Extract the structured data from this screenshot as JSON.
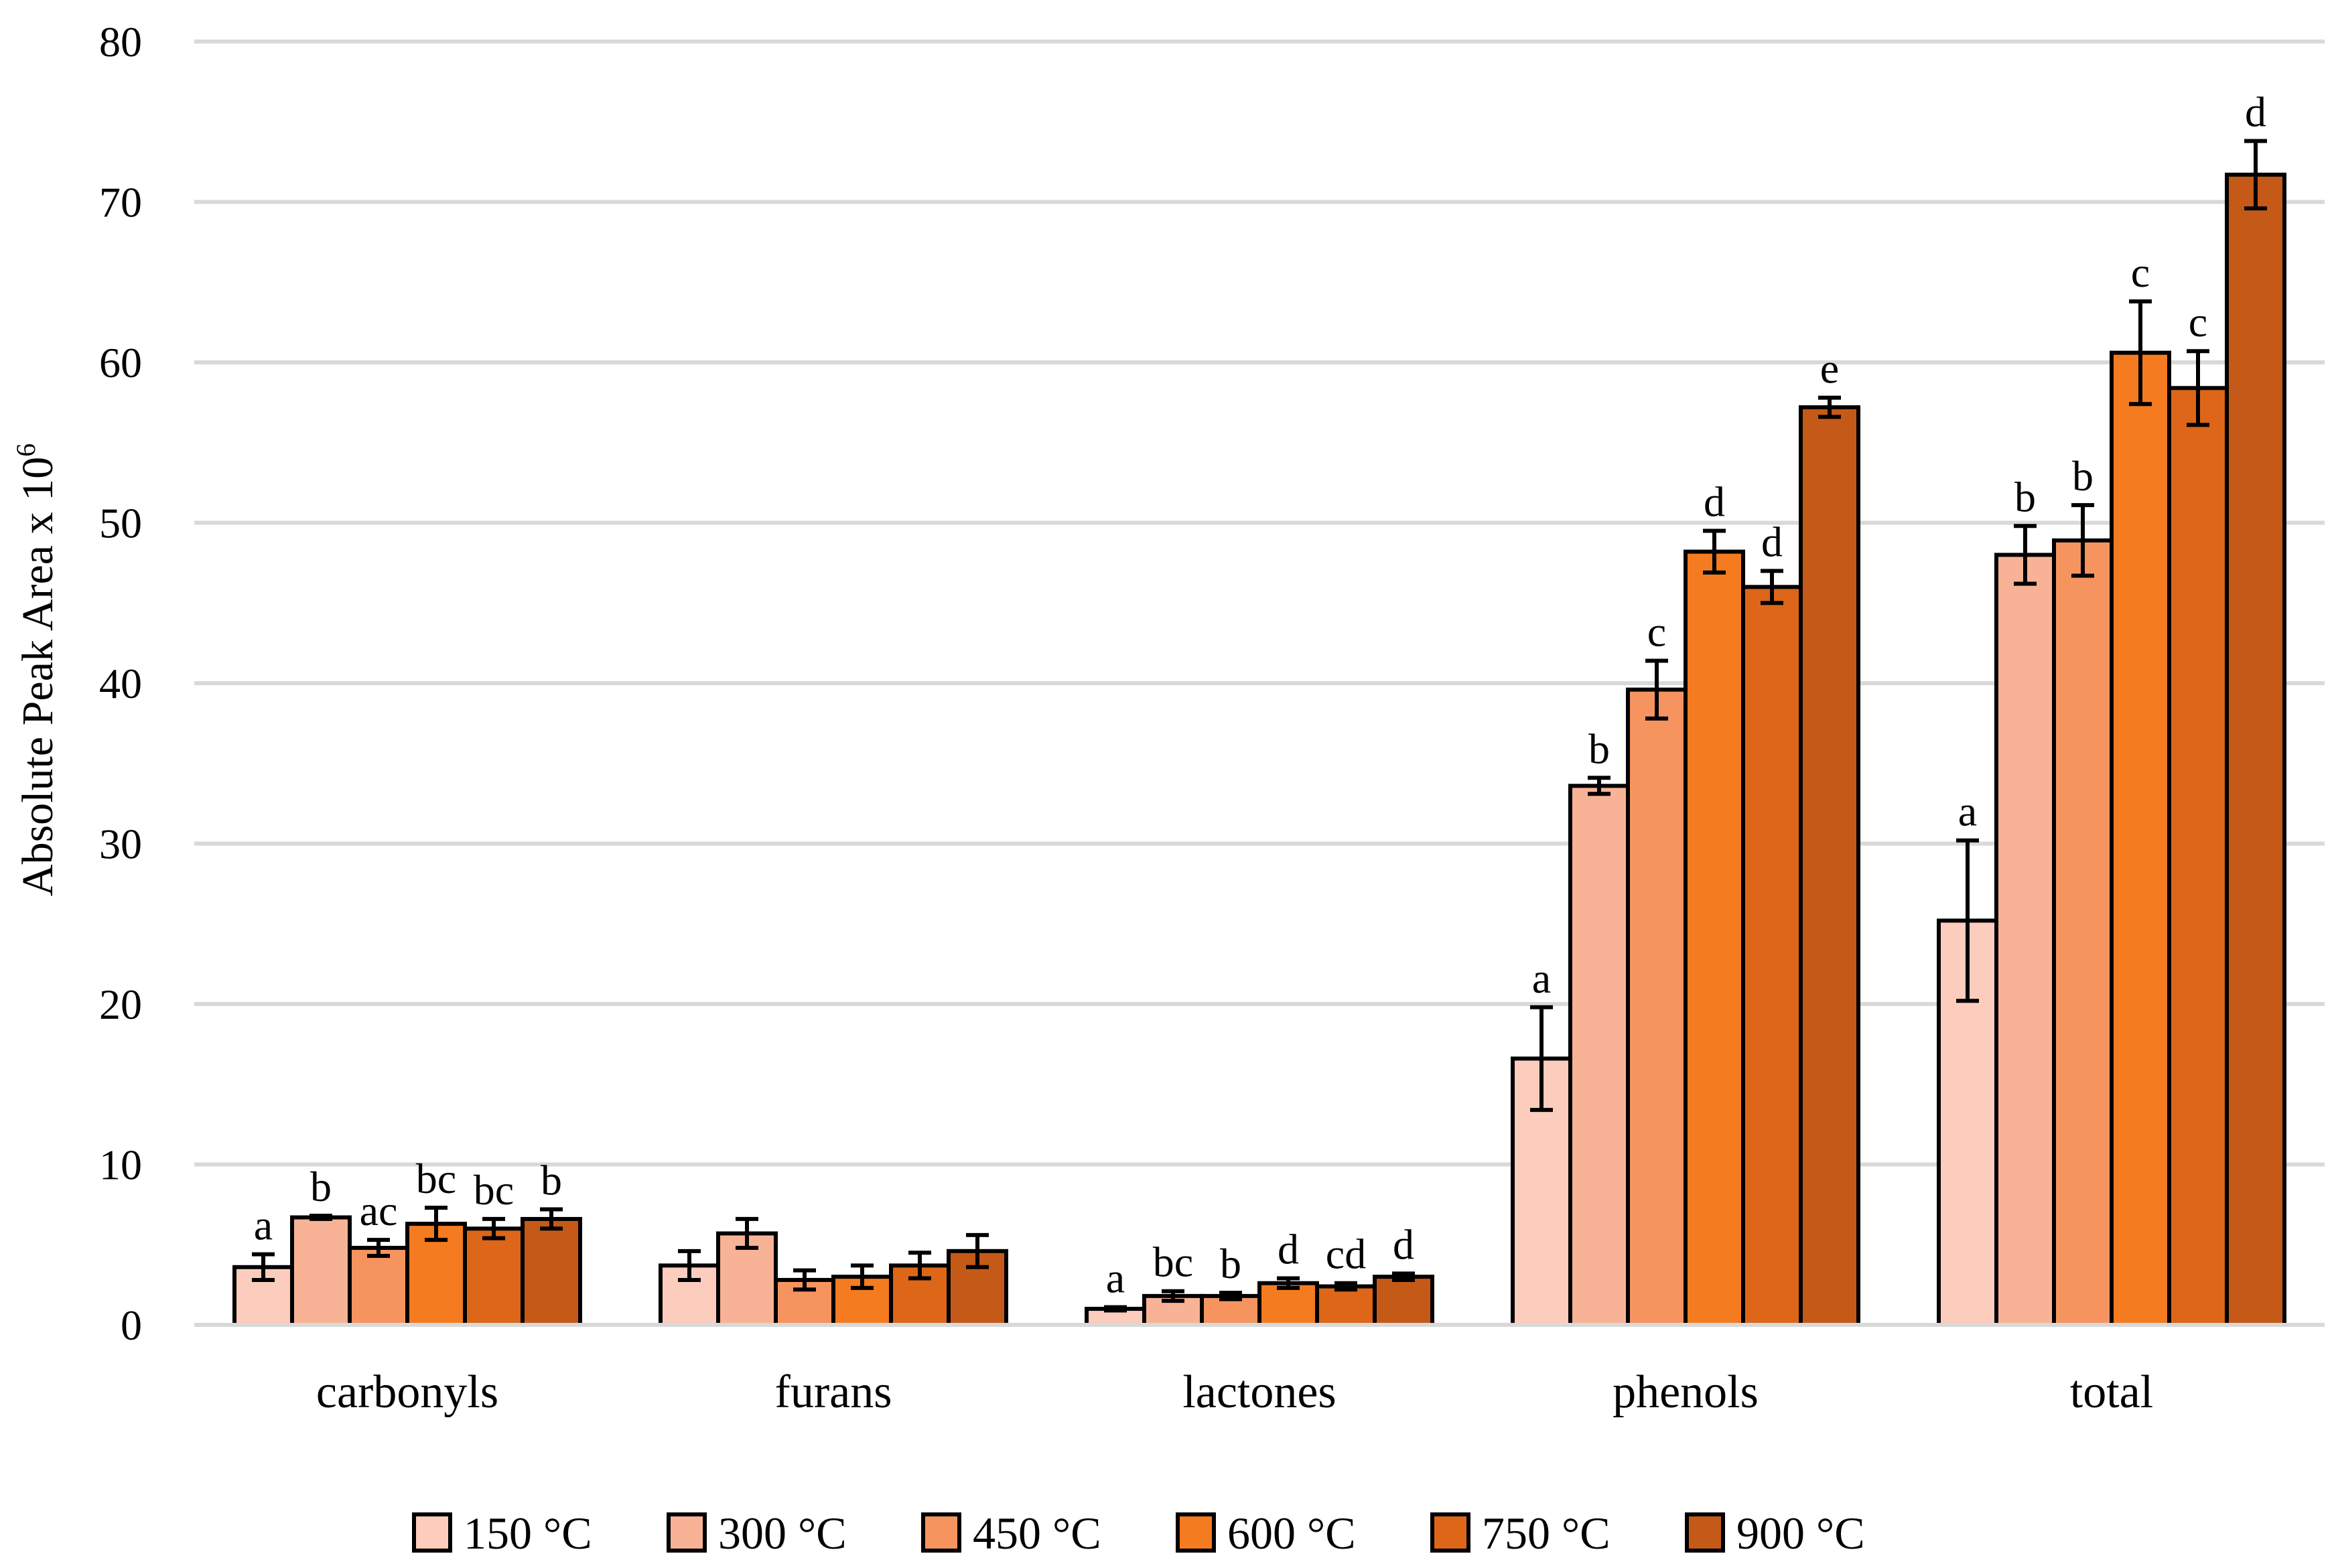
{
  "chart_data": {
    "type": "bar",
    "title": "",
    "xlabel": "",
    "ylabel": "Absolute Peak Area x 10",
    "ylabel_superscript": "6",
    "ylim": [
      0,
      80
    ],
    "yticks": [
      0,
      10,
      20,
      30,
      40,
      50,
      60,
      70,
      80
    ],
    "grid": true,
    "legend_position": "bottom",
    "categories": [
      "carbonyls",
      "furans",
      "lactones",
      "phenols",
      "total"
    ],
    "series": [
      {
        "name": "150 °C",
        "color": "#fcccbc",
        "values": [
          3.6,
          3.7,
          1.0,
          16.6,
          25.2
        ],
        "errors": [
          0.8,
          0.9,
          0.1,
          3.2,
          5.0
        ],
        "annotations": [
          "a",
          "",
          "a",
          "a",
          "a"
        ]
      },
      {
        "name": "300 °C",
        "color": "#f8b396",
        "values": [
          6.7,
          5.7,
          1.8,
          33.6,
          48.0
        ],
        "errors": [
          0.1,
          0.9,
          0.3,
          0.5,
          1.8
        ],
        "annotations": [
          "b",
          "",
          "bc",
          "b",
          "b"
        ]
      },
      {
        "name": "450 °C",
        "color": "#f69460",
        "values": [
          4.8,
          2.8,
          1.8,
          39.6,
          48.9
        ],
        "errors": [
          0.5,
          0.6,
          0.2,
          1.8,
          2.2
        ],
        "annotations": [
          "ac",
          "",
          "b",
          "c",
          "b"
        ]
      },
      {
        "name": "600 °C",
        "color": "#f47b20",
        "values": [
          6.3,
          3.0,
          2.6,
          48.2,
          60.6
        ],
        "errors": [
          1.0,
          0.7,
          0.3,
          1.3,
          3.2
        ],
        "annotations": [
          "bc",
          "",
          "d",
          "d",
          "c"
        ]
      },
      {
        "name": "750 °C",
        "color": "#dd6618",
        "values": [
          6.0,
          3.7,
          2.4,
          46.0,
          58.4
        ],
        "errors": [
          0.6,
          0.8,
          0.2,
          1.0,
          2.3
        ],
        "annotations": [
          "bc",
          "",
          "cd",
          "d",
          "c"
        ]
      },
      {
        "name": "900 °C",
        "color": "#c55a18",
        "values": [
          6.6,
          4.6,
          3.0,
          57.2,
          71.7
        ],
        "errors": [
          0.6,
          1.0,
          0.2,
          0.6,
          2.1
        ],
        "annotations": [
          "b",
          "",
          "d",
          "e",
          "d"
        ]
      }
    ]
  }
}
